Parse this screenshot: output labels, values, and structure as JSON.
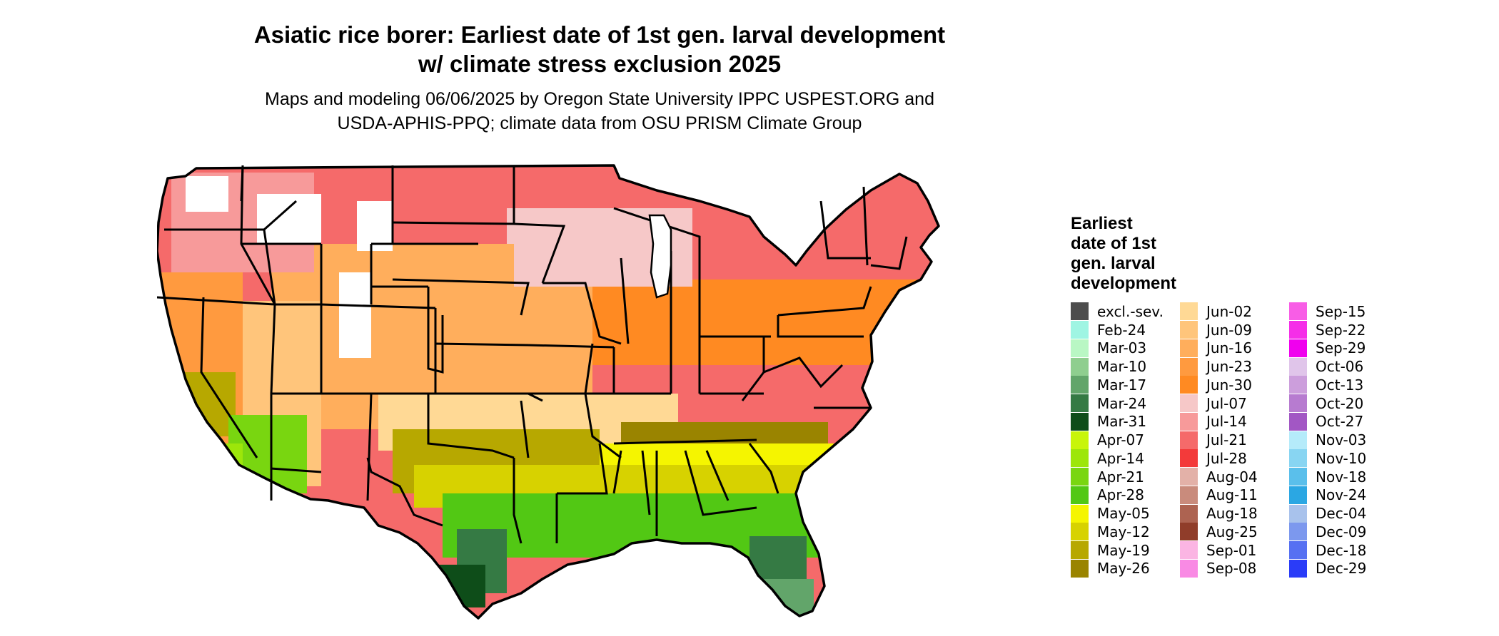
{
  "title_line1": "Asiatic rice borer: Earliest date of 1st gen. larval development",
  "title_line2": "w/ climate stress exclusion 2025",
  "subtitle_line1": "Maps and modeling 06/06/2025 by Oregon State University IPPC USPEST.ORG and",
  "subtitle_line2": "USDA-APHIS-PPQ; climate data from OSU PRISM Climate Group",
  "legend": {
    "title_line1": "Earliest",
    "title_line2": "date of 1st",
    "title_line3": "gen. larval",
    "title_line4": "development",
    "columns": [
      [
        {
          "label": "excl.-sev.",
          "color": "#4d4d4d"
        },
        {
          "label": "Feb-24",
          "color": "#9ff5e3"
        },
        {
          "label": "Mar-03",
          "color": "#b9f7c4"
        },
        {
          "label": "Mar-10",
          "color": "#8fce8f"
        },
        {
          "label": "Mar-17",
          "color": "#62a56a"
        },
        {
          "label": "Mar-24",
          "color": "#357a44"
        },
        {
          "label": "Mar-31",
          "color": "#0e4d19"
        },
        {
          "label": "Apr-07",
          "color": "#c8f50a"
        },
        {
          "label": "Apr-14",
          "color": "#9de60a"
        },
        {
          "label": "Apr-21",
          "color": "#79d610"
        },
        {
          "label": "Apr-28",
          "color": "#52c814"
        },
        {
          "label": "May-05",
          "color": "#f5f500"
        },
        {
          "label": "May-12",
          "color": "#d7d200"
        },
        {
          "label": "May-19",
          "color": "#b7a800"
        },
        {
          "label": "May-26",
          "color": "#9a8400"
        }
      ],
      [
        {
          "label": "Jun-02",
          "color": "#ffd995"
        },
        {
          "label": "Jun-09",
          "color": "#ffc57b"
        },
        {
          "label": "Jun-16",
          "color": "#ffae5c"
        },
        {
          "label": "Jun-23",
          "color": "#ff9a3f"
        },
        {
          "label": "Jun-30",
          "color": "#ff8a22"
        },
        {
          "label": "Jul-07",
          "color": "#f6c8c8"
        },
        {
          "label": "Jul-14",
          "color": "#f79a9a"
        },
        {
          "label": "Jul-21",
          "color": "#f56a6a"
        },
        {
          "label": "Jul-28",
          "color": "#f33a3a"
        },
        {
          "label": "Aug-04",
          "color": "#e3b1a8"
        },
        {
          "label": "Aug-11",
          "color": "#c98b7c"
        },
        {
          "label": "Aug-18",
          "color": "#ad6351"
        },
        {
          "label": "Aug-25",
          "color": "#903d2a"
        },
        {
          "label": "Sep-01",
          "color": "#fbb5e3"
        },
        {
          "label": "Sep-08",
          "color": "#f98ae4"
        }
      ],
      [
        {
          "label": "Sep-15",
          "color": "#f85de6"
        },
        {
          "label": "Sep-22",
          "color": "#f52ee8"
        },
        {
          "label": "Sep-29",
          "color": "#f000ee"
        },
        {
          "label": "Oct-06",
          "color": "#e0c5ea"
        },
        {
          "label": "Oct-13",
          "color": "#cc9edc"
        },
        {
          "label": "Oct-20",
          "color": "#b77bd0"
        },
        {
          "label": "Oct-27",
          "color": "#a257c4"
        },
        {
          "label": "Nov-03",
          "color": "#b5ebfa"
        },
        {
          "label": "Nov-10",
          "color": "#88d5f2"
        },
        {
          "label": "Nov-18",
          "color": "#5abfeb"
        },
        {
          "label": "Nov-24",
          "color": "#2ba7e3"
        },
        {
          "label": "Dec-04",
          "color": "#a8c2ec"
        },
        {
          "label": "Dec-09",
          "color": "#7c98ee"
        },
        {
          "label": "Dec-18",
          "color": "#5670f2"
        },
        {
          "label": "Dec-29",
          "color": "#2a3cf8"
        }
      ]
    ]
  }
}
